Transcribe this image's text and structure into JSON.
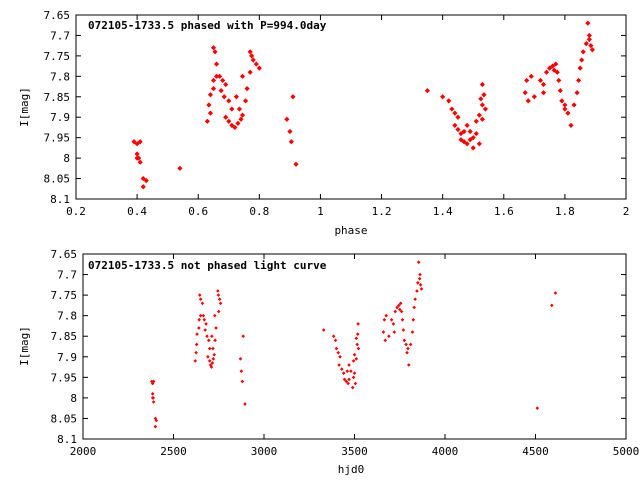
{
  "chart_data": [
    {
      "type": "scatter",
      "title": "072105-1733.5 phased with P=994.0day",
      "xlabel": "phase",
      "ylabel": "I[mag]",
      "xlim": [
        0.2,
        2.0
      ],
      "ylim": [
        7.65,
        8.1
      ],
      "y_inverted": true,
      "grid": false,
      "marker_color": "#ff0000",
      "xticks": [
        "0.2",
        "0.4",
        "0.6",
        "0.8",
        "1",
        "1.2",
        "1.4",
        "1.6",
        "1.8",
        "2"
      ],
      "xtick_values": [
        0.2,
        0.4,
        0.6,
        0.8,
        1.0,
        1.2,
        1.4,
        1.6,
        1.8,
        2.0
      ],
      "yticks": [
        "7.65",
        "7.7",
        "7.75",
        "7.8",
        "7.85",
        "7.9",
        "7.95",
        "8",
        "8.05",
        "8.1"
      ],
      "ytick_values": [
        7.65,
        7.7,
        7.75,
        7.8,
        7.85,
        7.9,
        7.95,
        8.0,
        8.05,
        8.1
      ],
      "points": [
        [
          0.39,
          7.96
        ],
        [
          0.4,
          7.965
        ],
        [
          0.41,
          7.96
        ],
        [
          0.4,
          7.99
        ],
        [
          0.4,
          8.0
        ],
        [
          0.41,
          8.01
        ],
        [
          0.405,
          8.0
        ],
        [
          0.42,
          8.05
        ],
        [
          0.42,
          8.07
        ],
        [
          0.43,
          8.055
        ],
        [
          0.54,
          8.025
        ],
        [
          0.63,
          7.91
        ],
        [
          0.64,
          7.89
        ],
        [
          0.635,
          7.87
        ],
        [
          0.64,
          7.845
        ],
        [
          0.65,
          7.83
        ],
        [
          0.65,
          7.81
        ],
        [
          0.66,
          7.8
        ],
        [
          0.65,
          7.73
        ],
        [
          0.655,
          7.74
        ],
        [
          0.66,
          7.77
        ],
        [
          0.67,
          7.8
        ],
        [
          0.68,
          7.81
        ],
        [
          0.69,
          7.82
        ],
        [
          0.675,
          7.835
        ],
        [
          0.685,
          7.85
        ],
        [
          0.7,
          7.86
        ],
        [
          0.71,
          7.88
        ],
        [
          0.69,
          7.9
        ],
        [
          0.7,
          7.91
        ],
        [
          0.71,
          7.92
        ],
        [
          0.72,
          7.925
        ],
        [
          0.73,
          7.915
        ],
        [
          0.74,
          7.905
        ],
        [
          0.725,
          7.85
        ],
        [
          0.735,
          7.88
        ],
        [
          0.745,
          7.895
        ],
        [
          0.755,
          7.86
        ],
        [
          0.745,
          7.8
        ],
        [
          0.76,
          7.83
        ],
        [
          0.77,
          7.74
        ],
        [
          0.775,
          7.75
        ],
        [
          0.78,
          7.76
        ],
        [
          0.77,
          7.79
        ],
        [
          0.79,
          7.77
        ],
        [
          0.8,
          7.78
        ],
        [
          0.89,
          7.905
        ],
        [
          0.9,
          7.935
        ],
        [
          0.905,
          7.96
        ],
        [
          0.91,
          7.85
        ],
        [
          0.92,
          8.015
        ],
        [
          1.35,
          7.835
        ],
        [
          1.4,
          7.85
        ],
        [
          1.42,
          7.86
        ],
        [
          1.43,
          7.88
        ],
        [
          1.44,
          7.89
        ],
        [
          1.45,
          7.9
        ],
        [
          1.44,
          7.92
        ],
        [
          1.45,
          7.93
        ],
        [
          1.46,
          7.94
        ],
        [
          1.46,
          7.955
        ],
        [
          1.47,
          7.96
        ],
        [
          1.48,
          7.965
        ],
        [
          1.49,
          7.955
        ],
        [
          1.47,
          7.935
        ],
        [
          1.48,
          7.92
        ],
        [
          1.49,
          7.935
        ],
        [
          1.5,
          7.975
        ],
        [
          1.5,
          7.95
        ],
        [
          1.51,
          7.94
        ],
        [
          1.52,
          7.965
        ],
        [
          1.51,
          7.91
        ],
        [
          1.52,
          7.895
        ],
        [
          1.53,
          7.905
        ],
        [
          1.53,
          7.87
        ],
        [
          1.525,
          7.855
        ],
        [
          1.535,
          7.845
        ],
        [
          1.54,
          7.88
        ],
        [
          1.53,
          7.82
        ],
        [
          1.67,
          7.84
        ],
        [
          1.675,
          7.81
        ],
        [
          1.68,
          7.86
        ],
        [
          1.69,
          7.8
        ],
        [
          1.7,
          7.85
        ],
        [
          1.72,
          7.81
        ],
        [
          1.73,
          7.82
        ],
        [
          1.73,
          7.84
        ],
        [
          1.74,
          7.79
        ],
        [
          1.75,
          7.78
        ],
        [
          1.76,
          7.775
        ],
        [
          1.77,
          7.77
        ],
        [
          1.765,
          7.785
        ],
        [
          1.775,
          7.79
        ],
        [
          1.78,
          7.81
        ],
        [
          1.785,
          7.835
        ],
        [
          1.79,
          7.86
        ],
        [
          1.8,
          7.87
        ],
        [
          1.81,
          7.89
        ],
        [
          1.8,
          7.88
        ],
        [
          1.82,
          7.92
        ],
        [
          1.83,
          7.87
        ],
        [
          1.84,
          7.84
        ],
        [
          1.845,
          7.81
        ],
        [
          1.85,
          7.78
        ],
        [
          1.855,
          7.76
        ],
        [
          1.86,
          7.74
        ],
        [
          1.87,
          7.72
        ],
        [
          1.875,
          7.67
        ],
        [
          1.88,
          7.71
        ],
        [
          1.885,
          7.725
        ],
        [
          1.89,
          7.735
        ],
        [
          1.88,
          7.7
        ]
      ]
    },
    {
      "type": "scatter",
      "title": "072105-1733.5 not phased light curve",
      "xlabel": "hjd0",
      "ylabel": "I[mag]",
      "xlim": [
        2000,
        5000
      ],
      "ylim": [
        7.65,
        8.1
      ],
      "y_inverted": true,
      "grid": false,
      "marker_color": "#ff0000",
      "xticks": [
        "2000",
        "2500",
        "3000",
        "3500",
        "4000",
        "4500",
        "5000"
      ],
      "xtick_values": [
        2000,
        2500,
        3000,
        3500,
        4000,
        4500,
        5000
      ],
      "yticks": [
        "7.65",
        "7.7",
        "7.75",
        "7.8",
        "7.85",
        "7.9",
        "7.95",
        "8",
        "8.05",
        "8.1"
      ],
      "ytick_values": [
        7.65,
        7.7,
        7.75,
        7.8,
        7.85,
        7.9,
        7.95,
        8.0,
        8.05,
        8.1
      ],
      "points": [
        [
          2380,
          7.96
        ],
        [
          2385,
          7.965
        ],
        [
          2390,
          7.96
        ],
        [
          2385,
          7.99
        ],
        [
          2385,
          8.0
        ],
        [
          2390,
          8.01
        ],
        [
          2388,
          8.0
        ],
        [
          2400,
          8.05
        ],
        [
          2400,
          8.07
        ],
        [
          2405,
          8.055
        ],
        [
          2620,
          7.91
        ],
        [
          2625,
          7.89
        ],
        [
          2628,
          7.87
        ],
        [
          2630,
          7.845
        ],
        [
          2640,
          7.83
        ],
        [
          2642,
          7.81
        ],
        [
          2650,
          7.8
        ],
        [
          2645,
          7.75
        ],
        [
          2650,
          7.76
        ],
        [
          2660,
          7.77
        ],
        [
          2665,
          7.8
        ],
        [
          2670,
          7.81
        ],
        [
          2680,
          7.82
        ],
        [
          2675,
          7.835
        ],
        [
          2685,
          7.85
        ],
        [
          2695,
          7.86
        ],
        [
          2700,
          7.88
        ],
        [
          2690,
          7.9
        ],
        [
          2700,
          7.91
        ],
        [
          2705,
          7.92
        ],
        [
          2710,
          7.925
        ],
        [
          2715,
          7.915
        ],
        [
          2720,
          7.905
        ],
        [
          2712,
          7.85
        ],
        [
          2718,
          7.88
        ],
        [
          2725,
          7.895
        ],
        [
          2730,
          7.86
        ],
        [
          2728,
          7.8
        ],
        [
          2735,
          7.83
        ],
        [
          2745,
          7.74
        ],
        [
          2748,
          7.75
        ],
        [
          2755,
          7.76
        ],
        [
          2750,
          7.79
        ],
        [
          2760,
          7.77
        ],
        [
          2870,
          7.905
        ],
        [
          2875,
          7.935
        ],
        [
          2880,
          7.96
        ],
        [
          2885,
          7.85
        ],
        [
          2895,
          8.015
        ],
        [
          3330,
          7.835
        ],
        [
          3385,
          7.85
        ],
        [
          3395,
          7.86
        ],
        [
          3400,
          7.88
        ],
        [
          3410,
          7.89
        ],
        [
          3420,
          7.9
        ],
        [
          3415,
          7.92
        ],
        [
          3430,
          7.93
        ],
        [
          3440,
          7.94
        ],
        [
          3445,
          7.955
        ],
        [
          3455,
          7.96
        ],
        [
          3465,
          7.965
        ],
        [
          3470,
          7.955
        ],
        [
          3460,
          7.935
        ],
        [
          3470,
          7.92
        ],
        [
          3480,
          7.935
        ],
        [
          3490,
          7.975
        ],
        [
          3495,
          7.95
        ],
        [
          3500,
          7.94
        ],
        [
          3505,
          7.965
        ],
        [
          3495,
          7.91
        ],
        [
          3500,
          7.895
        ],
        [
          3510,
          7.905
        ],
        [
          3515,
          7.87
        ],
        [
          3510,
          7.855
        ],
        [
          3518,
          7.845
        ],
        [
          3522,
          7.88
        ],
        [
          3520,
          7.82
        ],
        [
          3660,
          7.84
        ],
        [
          3665,
          7.81
        ],
        [
          3670,
          7.86
        ],
        [
          3675,
          7.8
        ],
        [
          3690,
          7.85
        ],
        [
          3705,
          7.81
        ],
        [
          3715,
          7.82
        ],
        [
          3720,
          7.84
        ],
        [
          3725,
          7.79
        ],
        [
          3735,
          7.78
        ],
        [
          3745,
          7.775
        ],
        [
          3755,
          7.77
        ],
        [
          3750,
          7.785
        ],
        [
          3760,
          7.79
        ],
        [
          3765,
          7.81
        ],
        [
          3770,
          7.835
        ],
        [
          3775,
          7.86
        ],
        [
          3785,
          7.87
        ],
        [
          3790,
          7.89
        ],
        [
          3795,
          7.88
        ],
        [
          3800,
          7.92
        ],
        [
          3810,
          7.87
        ],
        [
          3820,
          7.84
        ],
        [
          3825,
          7.81
        ],
        [
          3830,
          7.78
        ],
        [
          3835,
          7.76
        ],
        [
          3845,
          7.74
        ],
        [
          3850,
          7.72
        ],
        [
          3855,
          7.67
        ],
        [
          3860,
          7.71
        ],
        [
          3865,
          7.725
        ],
        [
          3870,
          7.735
        ],
        [
          3862,
          7.7
        ],
        [
          4510,
          8.025
        ],
        [
          4590,
          7.775
        ],
        [
          4610,
          7.745
        ]
      ]
    }
  ]
}
